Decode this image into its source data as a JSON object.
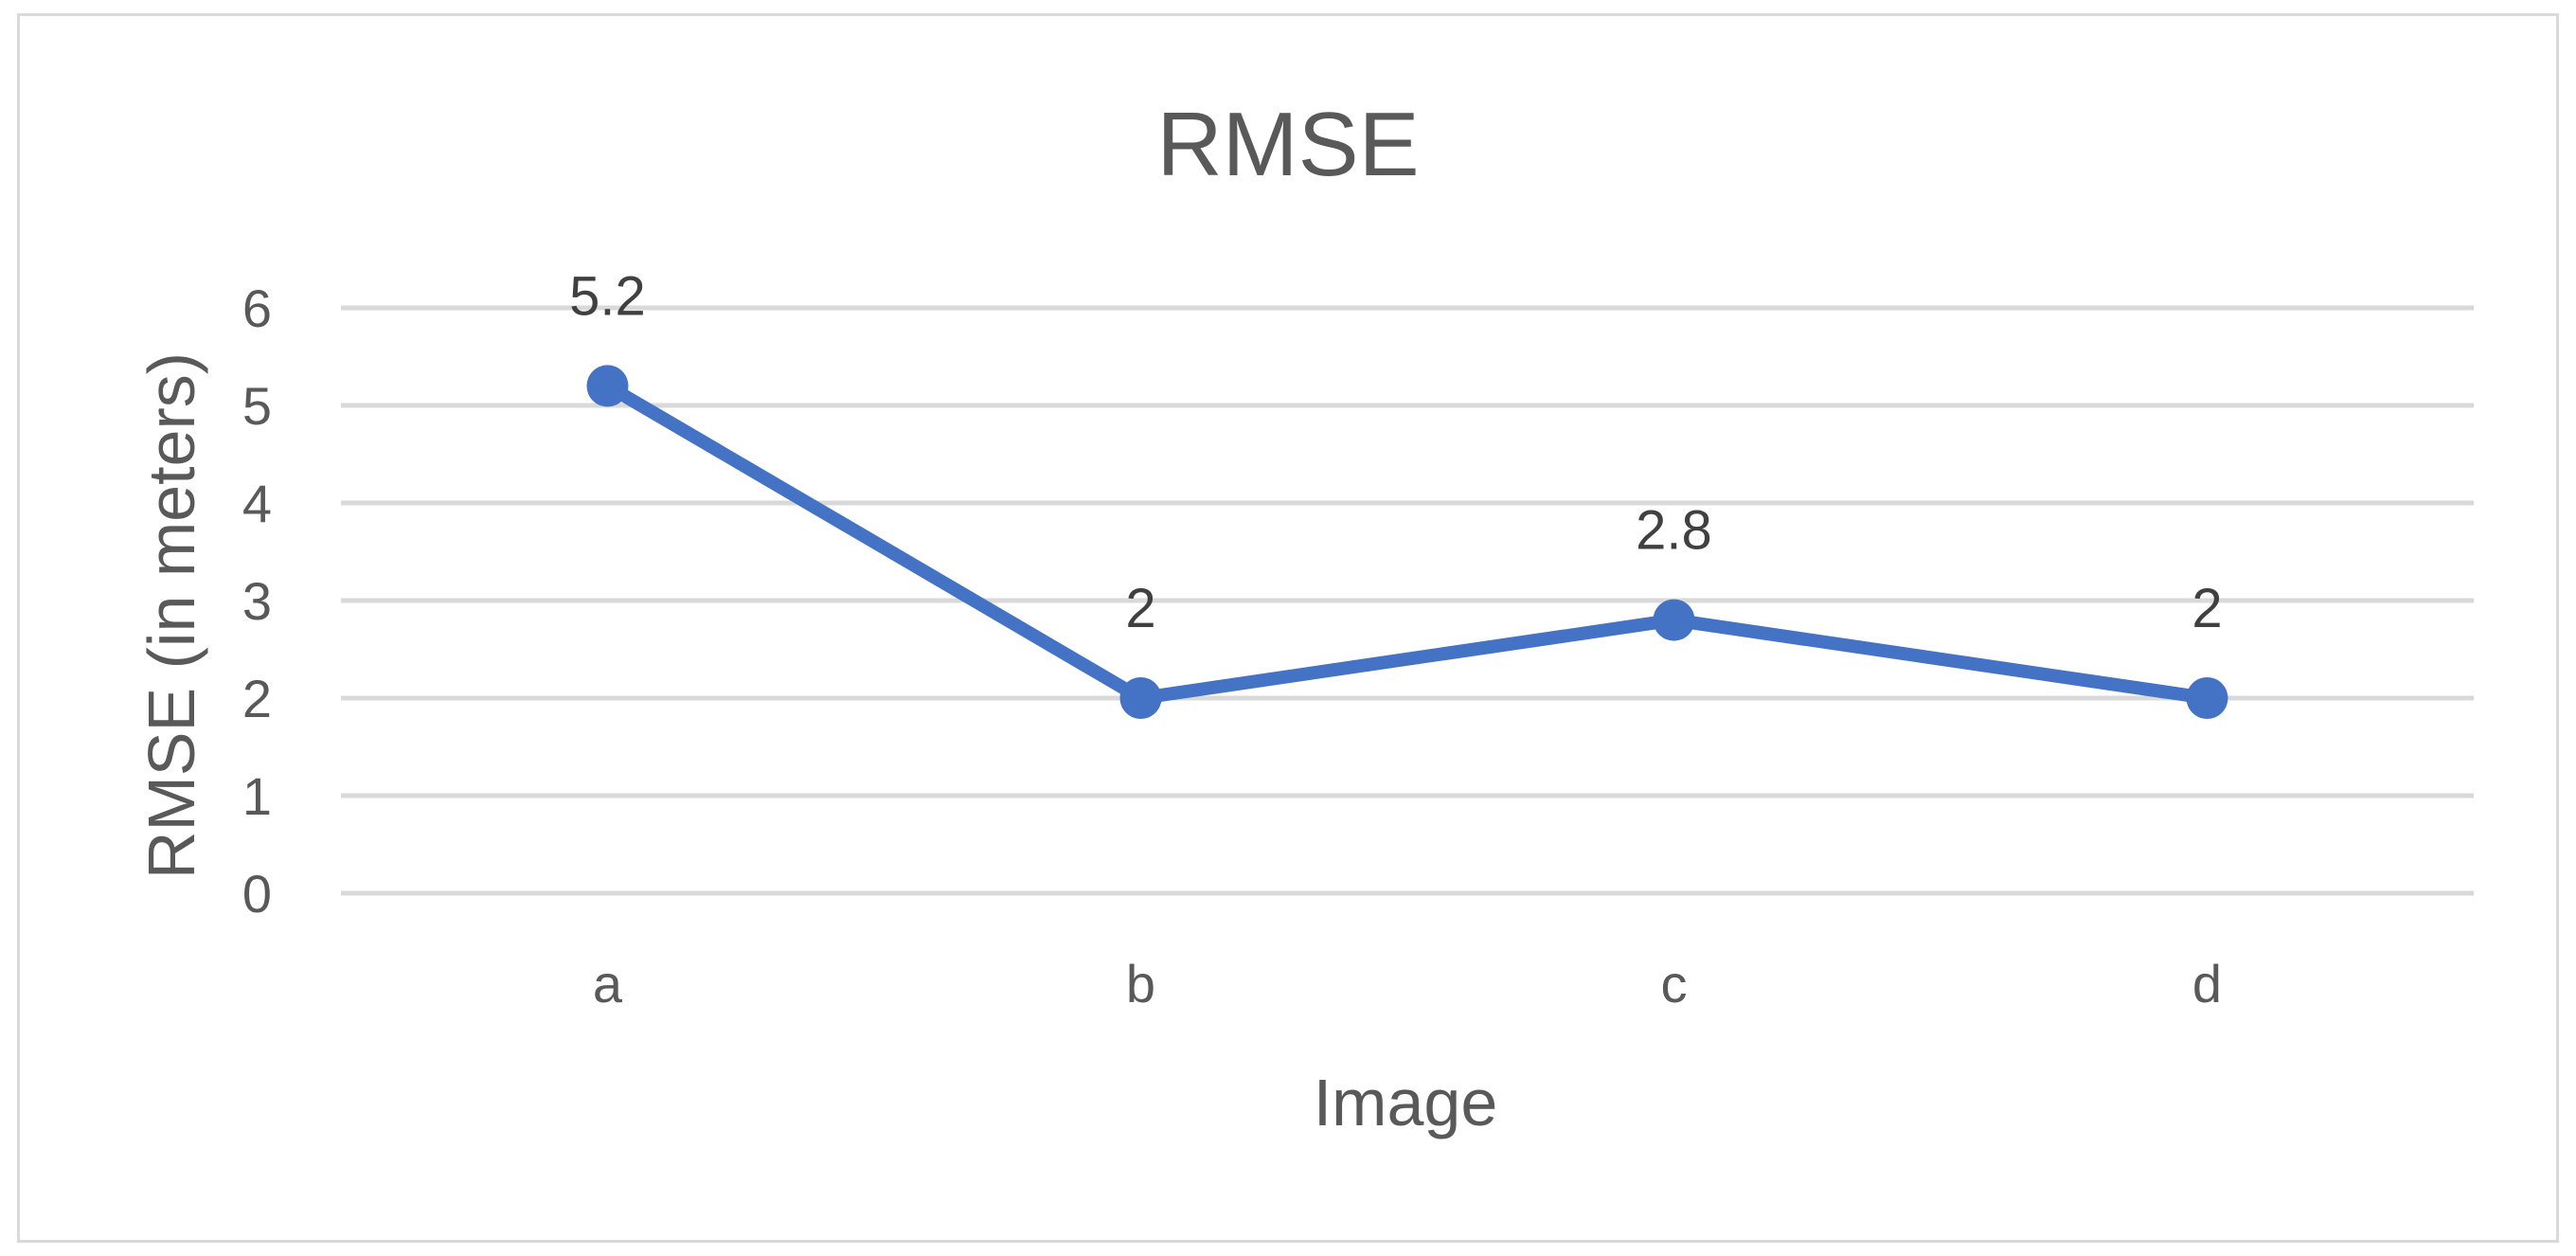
{
  "chart_data": {
    "type": "line",
    "title": "RMSE",
    "xlabel": "Image",
    "ylabel": "RMSE (in meters)",
    "categories": [
      "a",
      "b",
      "c",
      "d"
    ],
    "series": [
      {
        "values": [
          5.2,
          2,
          2.8,
          2
        ],
        "data_labels": [
          "5.2",
          "2",
          "2.8",
          "2"
        ],
        "color": "#4472c4"
      }
    ],
    "ylim": [
      0,
      6
    ],
    "yticks": [
      "0",
      "1",
      "2",
      "3",
      "4",
      "5",
      "6"
    ],
    "grid": true,
    "legend": "none",
    "colors": {
      "line": "#4472c4",
      "gridline": "#d9d9d9",
      "border": "#d9d9d9",
      "text": "#595959"
    }
  }
}
